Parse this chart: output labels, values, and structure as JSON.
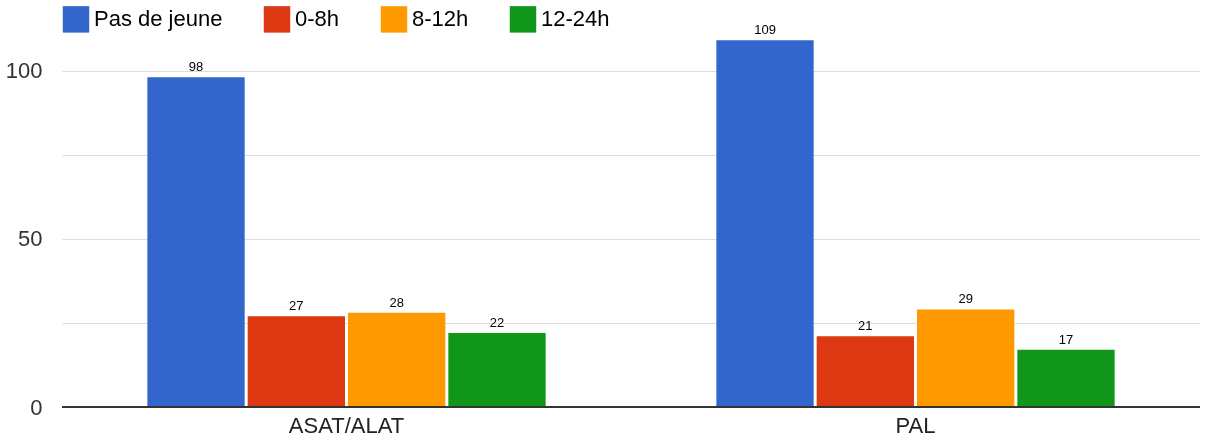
{
  "chart_data": {
    "type": "bar",
    "categories": [
      "ASAT/ALAT",
      "PAL"
    ],
    "series": [
      {
        "name": "Pas de jeune",
        "color": "#3366cc",
        "values": [
          98,
          109
        ]
      },
      {
        "name": "0-8h",
        "color": "#dc3912",
        "values": [
          27,
          21
        ]
      },
      {
        "name": "8-12h",
        "color": "#ff9900",
        "values": [
          28,
          29
        ]
      },
      {
        "name": "12-24h",
        "color": "#109618",
        "values": [
          22,
          17
        ]
      }
    ],
    "ylim": [
      0,
      110
    ],
    "yticks": [
      0,
      {
        "value": 25,
        "label": null
      },
      50,
      {
        "value": 75,
        "label": null
      },
      100
    ],
    "grid": "y",
    "legend": "top left",
    "data_labels": true
  }
}
